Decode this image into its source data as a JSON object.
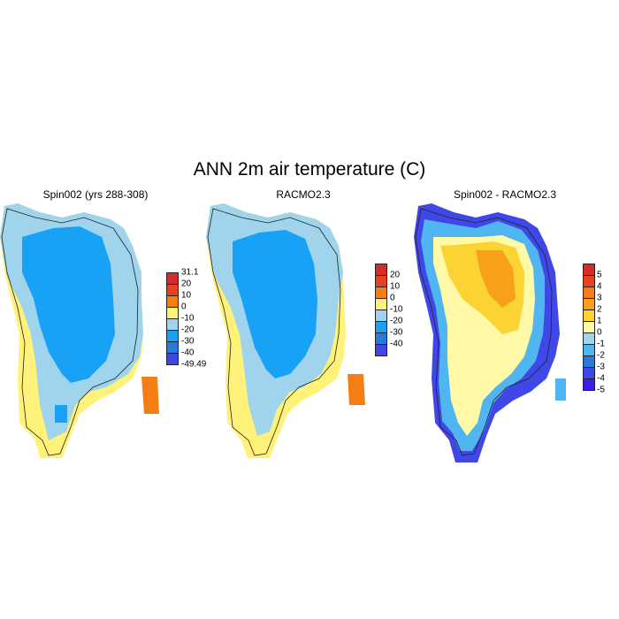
{
  "title": "ANN 2m air temperature (C)",
  "panels": [
    {
      "title": "Spin002 (yrs 288-308)"
    },
    {
      "title": "RACMO2.3"
    },
    {
      "title": "Spin002 - RACMO2.3"
    }
  ],
  "colorbars": [
    {
      "labels": [
        "31.1",
        "20",
        "10",
        "0",
        "-10",
        "-20",
        "-30",
        "-40",
        "-49.49"
      ],
      "colors": [
        "#d42b2b",
        "#e8411f",
        "#f57e14",
        "#fff27a",
        "#9fd4ec",
        "#17a2f5",
        "#2a7bd8",
        "#3f48e6"
      ]
    },
    {
      "labels": [
        "20",
        "10",
        "0",
        "-10",
        "-20",
        "-30",
        "-40"
      ],
      "colors": [
        "#d42b2b",
        "#e8411f",
        "#f57e14",
        "#fff27a",
        "#9fd4ec",
        "#17a2f5",
        "#2a7bd8",
        "#3f48e6"
      ]
    },
    {
      "labels": [
        "5",
        "4",
        "3",
        "2",
        "1",
        "0",
        "-1",
        "-2",
        "-3",
        "-4",
        "-5"
      ],
      "colors": [
        "#d42b2b",
        "#e8411f",
        "#f57e14",
        "#f9a01b",
        "#fbd433",
        "#fff9a8",
        "#9fd4ec",
        "#4fb6f2",
        "#2a7bd8",
        "#3f48e6",
        "#3c1cf0"
      ]
    }
  ]
}
